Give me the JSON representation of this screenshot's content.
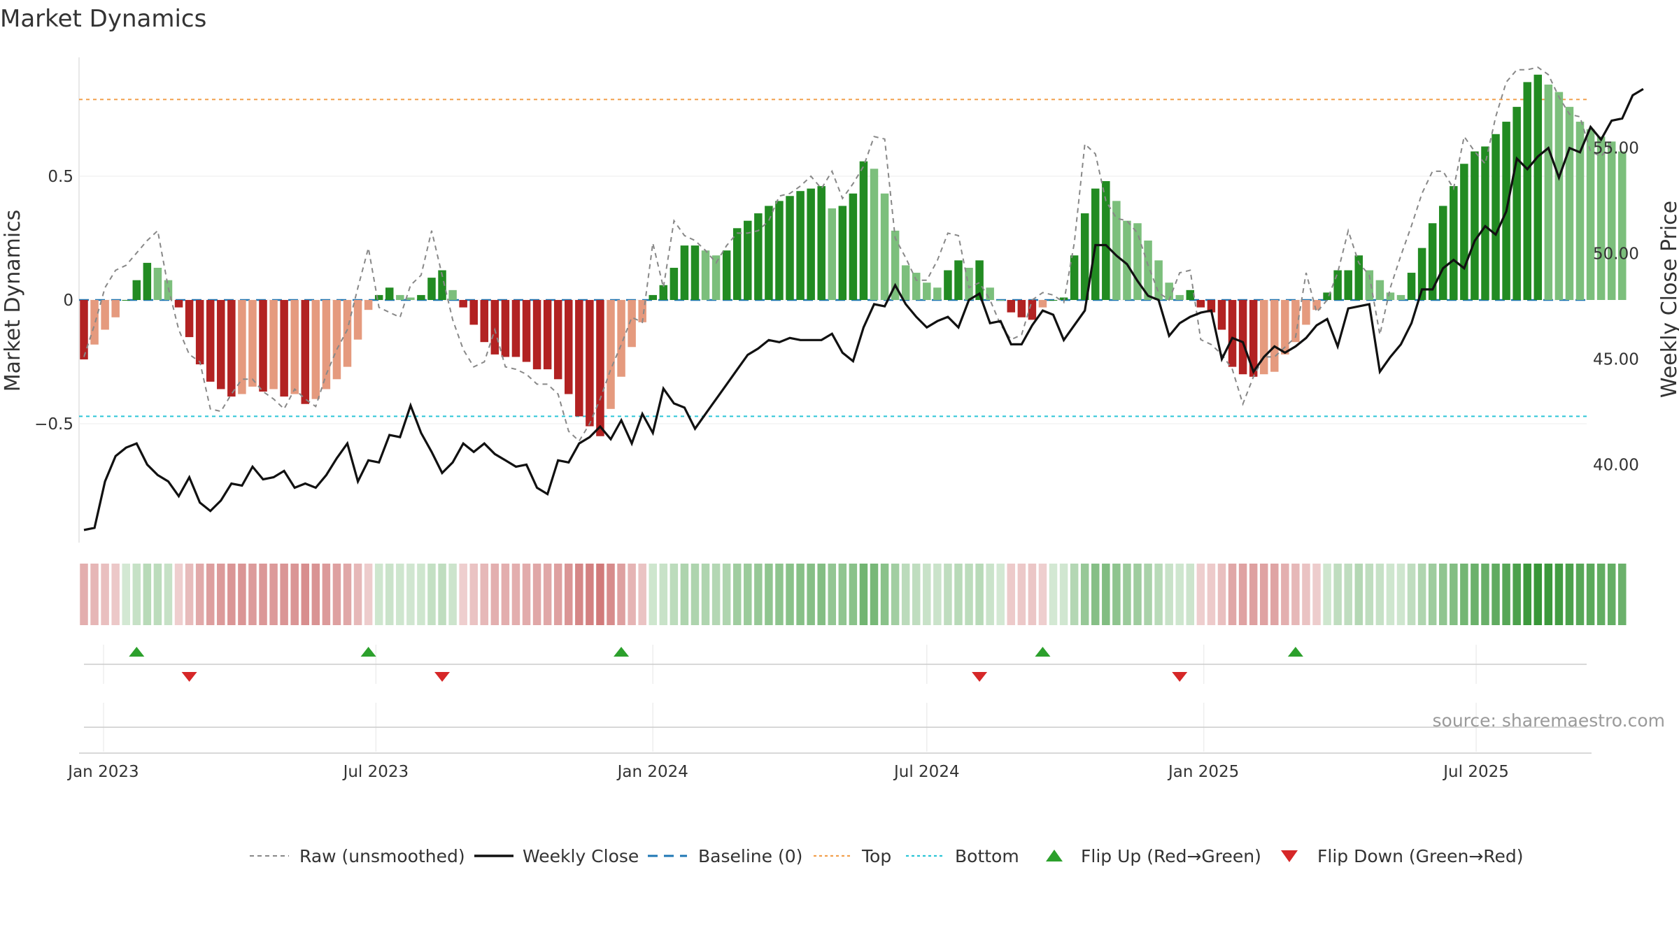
{
  "chart_data": {
    "type": "bar",
    "title": "Market Dynamics",
    "ylabel_left": "Market Dynamics",
    "ylabel_right": "Weekly Close Price",
    "source": "source: sharemaestro.com",
    "ylim_left": [
      -0.98,
      0.98
    ],
    "ylim_right": [
      36.3,
      59.3
    ],
    "left_ticks": [
      {
        "v": 0.5,
        "label": "0.5"
      },
      {
        "v": 0,
        "label": "0"
      },
      {
        "v": -0.5,
        "label": "−0.5"
      }
    ],
    "right_ticks": [
      {
        "v": 55,
        "label": "55.00"
      },
      {
        "v": 50,
        "label": "50.00"
      },
      {
        "v": 45,
        "label": "45.00"
      },
      {
        "v": 40,
        "label": "40.00"
      }
    ],
    "x_start": "2022-12-19",
    "x_ticks": [
      {
        "date": "2023-01-01",
        "label": "Jan 2023"
      },
      {
        "date": "2023-07-01",
        "label": "Jul 2023"
      },
      {
        "date": "2024-01-01",
        "label": "Jan 2024"
      },
      {
        "date": "2024-07-01",
        "label": "Jul 2024"
      },
      {
        "date": "2025-01-01",
        "label": "Jan 2025"
      },
      {
        "date": "2025-07-01",
        "label": "Jul 2025"
      }
    ],
    "top_level": 0.81,
    "bottom_level": -0.47,
    "baseline": 0,
    "histogram": [
      -0.24,
      -0.18,
      -0.12,
      -0.07,
      0.0,
      0.08,
      0.15,
      0.13,
      0.08,
      -0.03,
      -0.15,
      -0.26,
      -0.33,
      -0.36,
      -0.39,
      -0.38,
      -0.35,
      -0.37,
      -0.36,
      -0.39,
      -0.38,
      -0.42,
      -0.4,
      -0.36,
      -0.32,
      -0.27,
      -0.16,
      -0.04,
      0.02,
      0.05,
      0.02,
      0.01,
      0.02,
      0.09,
      0.12,
      0.04,
      -0.03,
      -0.1,
      -0.17,
      -0.22,
      -0.23,
      -0.23,
      -0.25,
      -0.28,
      -0.28,
      -0.32,
      -0.38,
      -0.47,
      -0.51,
      -0.55,
      -0.44,
      -0.31,
      -0.19,
      -0.09,
      0.02,
      0.06,
      0.13,
      0.22,
      0.22,
      0.2,
      0.18,
      0.2,
      0.29,
      0.32,
      0.35,
      0.38,
      0.4,
      0.42,
      0.44,
      0.45,
      0.46,
      0.37,
      0.38,
      0.43,
      0.56,
      0.53,
      0.43,
      0.28,
      0.14,
      0.11,
      0.07,
      0.05,
      0.12,
      0.16,
      0.13,
      0.16,
      0.05,
      0.0,
      -0.05,
      -0.07,
      -0.08,
      -0.03,
      0.0,
      0.01,
      0.18,
      0.35,
      0.45,
      0.48,
      0.4,
      0.32,
      0.31,
      0.24,
      0.16,
      0.07,
      0.02,
      0.04,
      -0.03,
      -0.05,
      -0.12,
      -0.27,
      -0.3,
      -0.31,
      -0.3,
      -0.29,
      -0.22,
      -0.17,
      -0.1,
      -0.04,
      0.03,
      0.12,
      0.12,
      0.18,
      0.12,
      0.08,
      0.03,
      0.02,
      0.11,
      0.21,
      0.31,
      0.38,
      0.46,
      0.55,
      0.6,
      0.62,
      0.67,
      0.72,
      0.78,
      0.88,
      0.91,
      0.87,
      0.84,
      0.78,
      0.72,
      0.69,
      0.66,
      0.64,
      0.6
    ],
    "raw": [
      -0.23,
      -0.1,
      0.05,
      0.12,
      0.14,
      0.19,
      0.24,
      0.28,
      0.05,
      -0.12,
      -0.22,
      -0.25,
      -0.44,
      -0.45,
      -0.38,
      -0.32,
      -0.32,
      -0.37,
      -0.4,
      -0.44,
      -0.36,
      -0.4,
      -0.43,
      -0.3,
      -0.2,
      -0.12,
      0.05,
      0.21,
      -0.03,
      -0.05,
      -0.07,
      0.06,
      0.1,
      0.28,
      0.1,
      -0.08,
      -0.2,
      -0.27,
      -0.25,
      -0.12,
      -0.27,
      -0.28,
      -0.3,
      -0.34,
      -0.34,
      -0.38,
      -0.53,
      -0.57,
      -0.5,
      -0.4,
      -0.28,
      -0.18,
      -0.07,
      -0.09,
      0.23,
      0.05,
      0.32,
      0.26,
      0.24,
      0.2,
      0.15,
      0.22,
      0.27,
      0.27,
      0.28,
      0.32,
      0.42,
      0.43,
      0.46,
      0.5,
      0.45,
      0.52,
      0.41,
      0.47,
      0.54,
      0.66,
      0.65,
      0.25,
      0.17,
      0.08,
      0.08,
      0.16,
      0.27,
      0.26,
      0.05,
      0.07,
      0.0,
      -0.1,
      -0.16,
      -0.14,
      -0.0,
      0.03,
      0.02,
      -0.01,
      0.23,
      0.63,
      0.59,
      0.4,
      0.33,
      0.32,
      0.27,
      0.14,
      0.03,
      0.0,
      0.11,
      0.12,
      -0.16,
      -0.18,
      -0.22,
      -0.28,
      -0.42,
      -0.31,
      -0.23,
      -0.23,
      -0.19,
      -0.15,
      0.11,
      -0.05,
      0.0,
      0.11,
      0.28,
      0.15,
      0.1,
      -0.14,
      0.05,
      0.18,
      0.3,
      0.43,
      0.52,
      0.52,
      0.45,
      0.66,
      0.6,
      0.55,
      0.74,
      0.88,
      0.93,
      0.93,
      0.94,
      0.91,
      0.82,
      0.75,
      0.74,
      0.6,
      0.58,
      0.63
    ],
    "close": [
      36.9,
      37.0,
      39.2,
      40.4,
      40.8,
      41.0,
      40.0,
      39.5,
      39.2,
      38.5,
      39.4,
      38.2,
      37.8,
      38.3,
      39.1,
      39.0,
      39.9,
      39.3,
      39.4,
      39.7,
      38.9,
      39.1,
      38.9,
      39.5,
      40.3,
      41.0,
      39.2,
      40.2,
      40.1,
      41.4,
      41.3,
      42.8,
      41.5,
      40.6,
      39.6,
      40.1,
      41.0,
      40.6,
      41.0,
      40.5,
      40.2,
      39.9,
      40.0,
      38.9,
      38.6,
      40.2,
      40.1,
      41.0,
      41.3,
      41.8,
      41.2,
      42.1,
      41.0,
      42.4,
      41.5,
      43.6,
      42.9,
      42.7,
      41.7,
      42.4,
      43.1,
      43.8,
      44.5,
      45.2,
      45.5,
      45.9,
      45.8,
      46.0,
      45.9,
      45.9,
      45.9,
      46.2,
      45.3,
      44.9,
      46.5,
      47.6,
      47.5,
      48.5,
      47.6,
      47.0,
      46.5,
      46.8,
      47.0,
      46.5,
      47.8,
      48.1,
      46.7,
      46.8,
      45.7,
      45.7,
      46.6,
      47.3,
      47.1,
      45.9,
      46.6,
      47.3,
      50.4,
      50.4,
      49.9,
      49.5,
      48.7,
      48.0,
      47.8,
      46.1,
      46.7,
      47.0,
      47.2,
      47.3,
      45.0,
      46.0,
      45.8,
      44.4,
      45.1,
      45.6,
      45.3,
      45.6,
      46.0,
      46.6,
      46.9,
      45.6,
      47.4,
      47.5,
      47.6,
      44.4,
      45.1,
      45.7,
      46.7,
      48.3,
      48.3,
      49.3,
      49.7,
      49.3,
      50.6,
      51.3,
      50.9,
      52.0,
      54.5,
      54.0,
      54.6,
      55.0,
      53.6,
      55.0,
      54.8,
      56.0,
      55.4,
      56.3,
      56.4,
      57.5,
      57.8
    ]
  },
  "legend": [
    {
      "label": "Raw (unsmoothed)",
      "kind": "dashed-gray"
    },
    {
      "label": "Weekly Close",
      "kind": "solid-black"
    },
    {
      "label": "Baseline (0)",
      "kind": "dashed-blue"
    },
    {
      "label": "Top",
      "kind": "dotted-orange"
    },
    {
      "label": "Bottom",
      "kind": "dotted-cyan"
    },
    {
      "label": "Flip Up (Red→Green)",
      "kind": "triangle-up"
    },
    {
      "label": "Flip Down (Green→Red)",
      "kind": "triangle-down"
    }
  ],
  "flips": [
    {
      "date": "2023-01-23",
      "dir": "up"
    },
    {
      "date": "2023-02-27",
      "dir": "down"
    },
    {
      "date": "2023-06-26",
      "dir": "up"
    },
    {
      "date": "2023-08-14",
      "dir": "down"
    },
    {
      "date": "2023-12-11",
      "dir": "up"
    },
    {
      "date": "2024-08-05",
      "dir": "down"
    },
    {
      "date": "2024-09-16",
      "dir": "up"
    },
    {
      "date": "2024-12-16",
      "dir": "down"
    },
    {
      "date": "2025-03-03",
      "dir": "up"
    }
  ],
  "colors": {
    "strong_pos": "#228b22",
    "weak_pos": "#7cbf7c",
    "strong_neg": "#b22222",
    "weak_neg": "#e59a7e",
    "raw": "#888888",
    "close": "#111111",
    "baseline": "#1f77b4",
    "top": "#f2a04e",
    "bottom": "#2cc5d6",
    "flip_up": "#2ca02c",
    "flip_down": "#d62728"
  }
}
